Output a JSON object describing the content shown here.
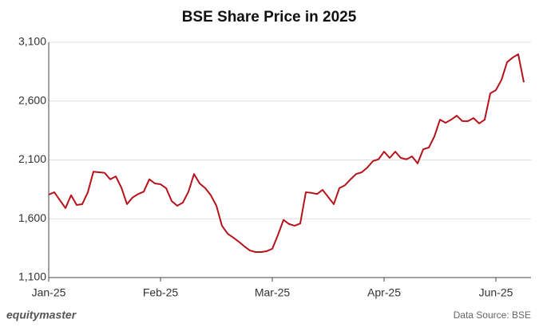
{
  "chart_data": {
    "type": "line",
    "title": "BSE Share Price in 2025",
    "brand": "equitymaster",
    "source": "Data Source: BSE",
    "categories": [
      "Jan-25",
      null,
      null,
      null,
      null,
      null,
      null,
      null,
      null,
      null,
      null,
      null,
      null,
      null,
      null,
      null,
      null,
      null,
      null,
      null,
      "Feb-25",
      null,
      null,
      null,
      null,
      null,
      null,
      null,
      null,
      null,
      null,
      null,
      null,
      null,
      null,
      null,
      null,
      null,
      null,
      null,
      "Mar-25",
      null,
      null,
      null,
      null,
      null,
      null,
      null,
      null,
      null,
      null,
      null,
      null,
      null,
      null,
      null,
      null,
      null,
      null,
      null,
      "Apr-25",
      null,
      null,
      null,
      null,
      null,
      null,
      null,
      null,
      null,
      null,
      null,
      null,
      null,
      null,
      null,
      null,
      null,
      null,
      null,
      "Jun-25",
      null,
      null,
      null,
      null,
      null
    ],
    "series": [
      {
        "name": "BSE",
        "color": "#b5121b",
        "values": [
          1805,
          1825,
          1758,
          1690,
          1800,
          1717,
          1724,
          1825,
          2000,
          1995,
          1990,
          1935,
          1960,
          1865,
          1724,
          1780,
          1810,
          1830,
          1935,
          1900,
          1893,
          1860,
          1750,
          1710,
          1737,
          1830,
          1980,
          1900,
          1860,
          1800,
          1710,
          1540,
          1473,
          1440,
          1405,
          1365,
          1330,
          1317,
          1317,
          1324,
          1345,
          1460,
          1590,
          1555,
          1540,
          1560,
          1825,
          1820,
          1810,
          1845,
          1785,
          1724,
          1860,
          1885,
          1935,
          1980,
          1995,
          2035,
          2090,
          2105,
          2170,
          2117,
          2170,
          2117,
          2105,
          2130,
          2070,
          2190,
          2205,
          2300,
          2442,
          2415,
          2442,
          2476,
          2430,
          2430,
          2456,
          2410,
          2442,
          2666,
          2693,
          2780,
          2930,
          2970,
          2998,
          2760
        ]
      }
    ],
    "ylim": [
      1100,
      3100
    ],
    "yticks": [
      {
        "value": 1100,
        "label": "1,100"
      },
      {
        "value": 1600,
        "label": "1,600"
      },
      {
        "value": 2100,
        "label": "2,100"
      },
      {
        "value": 2600,
        "label": "2,600"
      },
      {
        "value": 3100,
        "label": "3,100"
      }
    ],
    "grid": true
  }
}
